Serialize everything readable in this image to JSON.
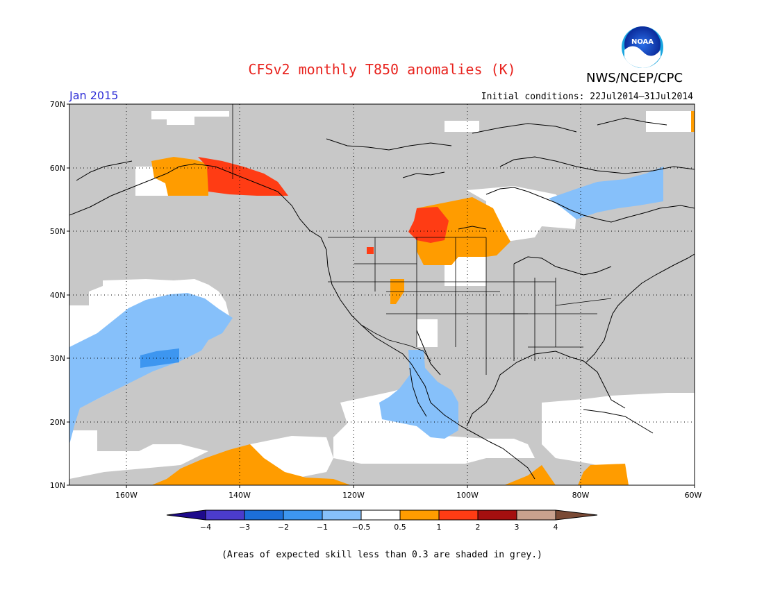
{
  "title": "CFSv2 monthly T850 anomalies (K)",
  "agency": "NWS/NCEP/CPC",
  "logo_text": "NOAA",
  "period": "Jan 2015",
  "initial_conditions": "Initial conditions: 22Jul2014–31Jul2014",
  "footnote": "(Areas of expected skill less than 0.3 are shaded in grey.)",
  "axes": {
    "lat_labels": [
      "70N",
      "60N",
      "50N",
      "40N",
      "30N",
      "20N",
      "10N"
    ],
    "lon_labels": [
      "160W",
      "140W",
      "120W",
      "100W",
      "80W",
      "60W"
    ]
  },
  "colorbar": {
    "labels": [
      "−4",
      "−3",
      "−2",
      "−1",
      "−0.5",
      "0.5",
      "1",
      "2",
      "3",
      "4"
    ],
    "colors": {
      "below_-4": "#1e0a8c",
      "-4_-3": "#4b3ccc",
      "-3_-2": "#1c6fd9",
      "-2_-1": "#3d96f0",
      "-1_-0.5": "#86c0fa",
      "-0.5_0.5": "#ffffff",
      "0.5_1": "#ff9c00",
      "1_2": "#ff3c14",
      "2_3": "#a50f0f",
      "3_4": "#c9a28e",
      "above_4": "#7a4a35"
    }
  },
  "map_colors": {
    "grey_low_skill": "#c8c8c8",
    "coast": "#000000"
  }
}
